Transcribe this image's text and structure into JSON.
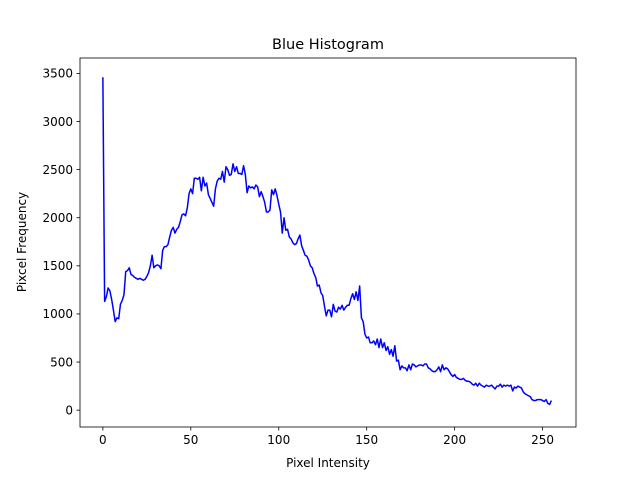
{
  "chart_data": {
    "type": "line",
    "title": "Blue Histogram",
    "xlabel": "Pixel Intensity",
    "ylabel": "Pixcel Frequency",
    "xlim": [
      -13,
      269
    ],
    "ylim": [
      -175,
      3660
    ],
    "xticks": [
      0,
      50,
      100,
      150,
      200,
      250
    ],
    "yticks": [
      0,
      500,
      1000,
      1500,
      2000,
      2500,
      3000,
      3500
    ],
    "grid": false,
    "legend": "none",
    "line_color": "#0000ff",
    "series": [
      {
        "points": [
          [
            0,
            3460
          ],
          [
            1,
            1130
          ],
          [
            2,
            1180
          ],
          [
            3,
            1270
          ],
          [
            4,
            1240
          ],
          [
            5,
            1150
          ],
          [
            6,
            1040
          ],
          [
            7,
            920
          ],
          [
            8,
            960
          ],
          [
            9,
            950
          ],
          [
            10,
            1100
          ],
          [
            11,
            1140
          ],
          [
            12,
            1200
          ],
          [
            13,
            1440
          ],
          [
            14,
            1450
          ],
          [
            15,
            1480
          ],
          [
            16,
            1410
          ],
          [
            17,
            1400
          ],
          [
            18,
            1380
          ],
          [
            19,
            1370
          ],
          [
            20,
            1360
          ],
          [
            21,
            1370
          ],
          [
            22,
            1360
          ],
          [
            23,
            1350
          ],
          [
            24,
            1360
          ],
          [
            25,
            1390
          ],
          [
            26,
            1430
          ],
          [
            27,
            1500
          ],
          [
            28,
            1610
          ],
          [
            29,
            1480
          ],
          [
            30,
            1500
          ],
          [
            31,
            1510
          ],
          [
            32,
            1500
          ],
          [
            33,
            1470
          ],
          [
            34,
            1660
          ],
          [
            35,
            1700
          ],
          [
            36,
            1700
          ],
          [
            37,
            1720
          ],
          [
            38,
            1800
          ],
          [
            39,
            1870
          ],
          [
            40,
            1900
          ],
          [
            41,
            1840
          ],
          [
            42,
            1880
          ],
          [
            43,
            1900
          ],
          [
            44,
            1960
          ],
          [
            45,
            2030
          ],
          [
            46,
            2040
          ],
          [
            47,
            2020
          ],
          [
            48,
            2100
          ],
          [
            49,
            2250
          ],
          [
            50,
            2300
          ],
          [
            51,
            2250
          ],
          [
            52,
            2410
          ],
          [
            53,
            2410
          ],
          [
            54,
            2400
          ],
          [
            55,
            2420
          ],
          [
            56,
            2280
          ],
          [
            57,
            2420
          ],
          [
            58,
            2330
          ],
          [
            59,
            2360
          ],
          [
            60,
            2240
          ],
          [
            61,
            2200
          ],
          [
            62,
            2160
          ],
          [
            63,
            2120
          ],
          [
            64,
            2300
          ],
          [
            65,
            2380
          ],
          [
            66,
            2410
          ],
          [
            67,
            2400
          ],
          [
            68,
            2480
          ],
          [
            69,
            2370
          ],
          [
            70,
            2530
          ],
          [
            71,
            2500
          ],
          [
            72,
            2440
          ],
          [
            73,
            2450
          ],
          [
            74,
            2560
          ],
          [
            75,
            2480
          ],
          [
            76,
            2530
          ],
          [
            77,
            2460
          ],
          [
            78,
            2460
          ],
          [
            79,
            2450
          ],
          [
            80,
            2540
          ],
          [
            81,
            2450
          ],
          [
            82,
            2260
          ],
          [
            83,
            2330
          ],
          [
            84,
            2310
          ],
          [
            85,
            2320
          ],
          [
            86,
            2300
          ],
          [
            87,
            2340
          ],
          [
            88,
            2320
          ],
          [
            89,
            2220
          ],
          [
            90,
            2270
          ],
          [
            91,
            2220
          ],
          [
            92,
            2160
          ],
          [
            93,
            2060
          ],
          [
            94,
            2060
          ],
          [
            95,
            2080
          ],
          [
            96,
            2290
          ],
          [
            97,
            2240
          ],
          [
            98,
            2300
          ],
          [
            99,
            2230
          ],
          [
            100,
            2140
          ],
          [
            101,
            2060
          ],
          [
            102,
            1840
          ],
          [
            103,
            2000
          ],
          [
            104,
            1870
          ],
          [
            105,
            1880
          ],
          [
            106,
            1800
          ],
          [
            107,
            1780
          ],
          [
            108,
            1740
          ],
          [
            109,
            1720
          ],
          [
            110,
            1730
          ],
          [
            111,
            1780
          ],
          [
            112,
            1820
          ],
          [
            113,
            1710
          ],
          [
            114,
            1660
          ],
          [
            115,
            1610
          ],
          [
            116,
            1600
          ],
          [
            117,
            1560
          ],
          [
            118,
            1500
          ],
          [
            119,
            1480
          ],
          [
            120,
            1420
          ],
          [
            121,
            1380
          ],
          [
            122,
            1290
          ],
          [
            123,
            1300
          ],
          [
            124,
            1220
          ],
          [
            125,
            1190
          ],
          [
            126,
            1080
          ],
          [
            127,
            980
          ],
          [
            128,
            1040
          ],
          [
            129,
            1040
          ],
          [
            130,
            970
          ],
          [
            131,
            1100
          ],
          [
            132,
            1030
          ],
          [
            133,
            1020
          ],
          [
            134,
            1070
          ],
          [
            135,
            1050
          ],
          [
            136,
            1090
          ],
          [
            137,
            1040
          ],
          [
            138,
            1070
          ],
          [
            139,
            1090
          ],
          [
            140,
            1090
          ],
          [
            141,
            1160
          ],
          [
            142,
            1210
          ],
          [
            143,
            1150
          ],
          [
            144,
            1230
          ],
          [
            145,
            1140
          ],
          [
            146,
            1290
          ],
          [
            147,
            960
          ],
          [
            148,
            920
          ],
          [
            149,
            790
          ],
          [
            150,
            750
          ],
          [
            151,
            760
          ],
          [
            152,
            700
          ],
          [
            153,
            700
          ],
          [
            154,
            720
          ],
          [
            155,
            680
          ],
          [
            156,
            740
          ],
          [
            157,
            650
          ],
          [
            158,
            740
          ],
          [
            159,
            650
          ],
          [
            160,
            700
          ],
          [
            161,
            620
          ],
          [
            162,
            660
          ],
          [
            163,
            580
          ],
          [
            164,
            630
          ],
          [
            165,
            560
          ],
          [
            166,
            670
          ],
          [
            167,
            510
          ],
          [
            168,
            520
          ],
          [
            169,
            420
          ],
          [
            170,
            460
          ],
          [
            171,
            440
          ],
          [
            172,
            440
          ],
          [
            173,
            410
          ],
          [
            174,
            470
          ],
          [
            175,
            420
          ],
          [
            176,
            480
          ],
          [
            177,
            470
          ],
          [
            178,
            450
          ],
          [
            179,
            460
          ],
          [
            180,
            470
          ],
          [
            181,
            470
          ],
          [
            182,
            460
          ],
          [
            183,
            480
          ],
          [
            184,
            480
          ],
          [
            185,
            440
          ],
          [
            186,
            430
          ],
          [
            187,
            410
          ],
          [
            188,
            400
          ],
          [
            189,
            400
          ],
          [
            190,
            420
          ],
          [
            191,
            450
          ],
          [
            192,
            400
          ],
          [
            193,
            470
          ],
          [
            194,
            420
          ],
          [
            195,
            440
          ],
          [
            196,
            430
          ],
          [
            197,
            400
          ],
          [
            198,
            370
          ],
          [
            199,
            350
          ],
          [
            200,
            370
          ],
          [
            201,
            340
          ],
          [
            202,
            330
          ],
          [
            203,
            320
          ],
          [
            204,
            320
          ],
          [
            205,
            330
          ],
          [
            206,
            310
          ],
          [
            207,
            300
          ],
          [
            208,
            300
          ],
          [
            209,
            290
          ],
          [
            210,
            270
          ],
          [
            211,
            260
          ],
          [
            212,
            280
          ],
          [
            213,
            250
          ],
          [
            214,
            280
          ],
          [
            215,
            260
          ],
          [
            216,
            250
          ],
          [
            217,
            240
          ],
          [
            218,
            260
          ],
          [
            219,
            250
          ],
          [
            220,
            250
          ],
          [
            221,
            260
          ],
          [
            222,
            240
          ],
          [
            223,
            220
          ],
          [
            224,
            250
          ],
          [
            225,
            250
          ],
          [
            226,
            270
          ],
          [
            227,
            240
          ],
          [
            228,
            260
          ],
          [
            229,
            250
          ],
          [
            230,
            260
          ],
          [
            231,
            250
          ],
          [
            232,
            260
          ],
          [
            233,
            200
          ],
          [
            234,
            240
          ],
          [
            235,
            230
          ],
          [
            236,
            250
          ],
          [
            237,
            240
          ],
          [
            238,
            230
          ],
          [
            239,
            190
          ],
          [
            240,
            170
          ],
          [
            241,
            160
          ],
          [
            242,
            150
          ],
          [
            243,
            140
          ],
          [
            244,
            110
          ],
          [
            245,
            100
          ],
          [
            246,
            100
          ],
          [
            247,
            110
          ],
          [
            248,
            110
          ],
          [
            249,
            110
          ],
          [
            250,
            100
          ],
          [
            251,
            90
          ],
          [
            252,
            110
          ],
          [
            253,
            70
          ],
          [
            254,
            60
          ],
          [
            255,
            100
          ]
        ]
      }
    ]
  }
}
